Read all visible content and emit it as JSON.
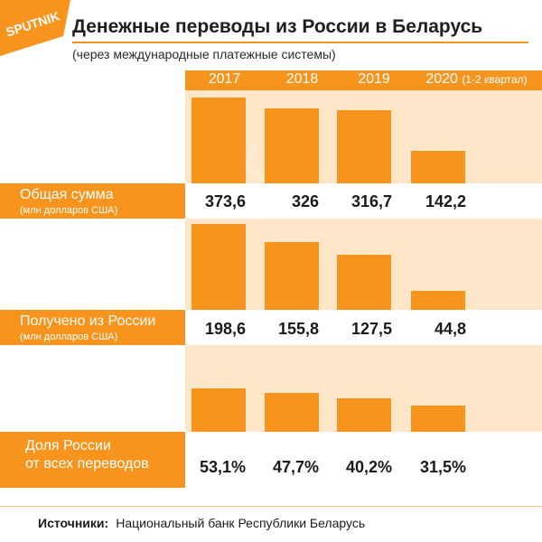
{
  "logo": {
    "text": "SPUTNIK"
  },
  "title": "Денежные переводы из России в Беларусь",
  "subtitle": "(через международные платежные системы)",
  "years": [
    {
      "label": "2017",
      "note": ""
    },
    {
      "label": "2018",
      "note": ""
    },
    {
      "label": "2019",
      "note": ""
    },
    {
      "label": "2020",
      "note": "(1-2 квартал)"
    }
  ],
  "rows": [
    {
      "label": "Общая сумма",
      "unit": "(млн долларов США)",
      "values": [
        "373,6",
        "326",
        "316,7",
        "142,2"
      ]
    },
    {
      "label": "Получено из России",
      "unit": "(млн долларов США)",
      "values": [
        "198,6",
        "155,8",
        "127,5",
        "44,8"
      ]
    },
    {
      "label_line1": "Доля России",
      "label_line2": "от всех переводов",
      "values": [
        "53,1%",
        "47,7%",
        "40,2%",
        "31,5%"
      ]
    }
  ],
  "source": {
    "label": "Источники:",
    "text": "Национальный банк Республики Беларусь"
  },
  "colors": {
    "accent": "#f7941d",
    "track": "#fde7c8"
  },
  "chart_data": [
    {
      "type": "bar",
      "categories": [
        "2017",
        "2018",
        "2019",
        "2020 (1-2 квартал)"
      ],
      "series": [
        {
          "name": "Общая сумма",
          "values": [
            373.6,
            326,
            316.7,
            142.2
          ]
        }
      ],
      "ylabel": "(млн долларов США)",
      "ylim": [
        0,
        373.6
      ]
    },
    {
      "type": "bar",
      "categories": [
        "2017",
        "2018",
        "2019",
        "2020 (1-2 квартал)"
      ],
      "series": [
        {
          "name": "Получено из России",
          "values": [
            198.6,
            155.8,
            127.5,
            44.8
          ]
        }
      ],
      "ylabel": "(млн долларов США)",
      "ylim": [
        0,
        198.6
      ]
    },
    {
      "type": "bar",
      "categories": [
        "2017",
        "2018",
        "2019",
        "2020 (1-2 квартал)"
      ],
      "series": [
        {
          "name": "Доля России от всех переводов",
          "values": [
            53.1,
            47.7,
            40.2,
            31.5
          ]
        }
      ],
      "ylabel": "",
      "ylim": [
        0,
        100
      ]
    }
  ]
}
